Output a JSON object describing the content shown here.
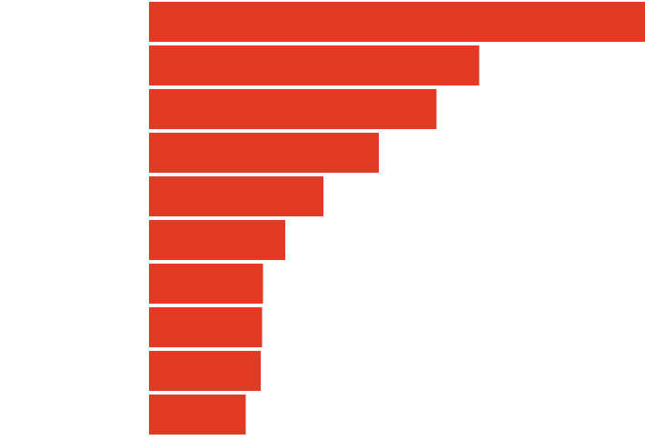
{
  "chart_data": {
    "type": "bar",
    "orientation": "horizontal",
    "title": "",
    "xlabel": "",
    "ylabel": "",
    "categories": [
      "",
      "",
      "",
      "",
      "",
      "",
      "",
      "",
      "",
      ""
    ],
    "values": [
      100,
      66.6,
      58.0,
      46.3,
      35.2,
      27.5,
      23.0,
      22.8,
      22.5,
      19.5
    ],
    "xlim": [
      0,
      100
    ],
    "grid": false,
    "legend": "none",
    "colors": {
      "bar": "#e23a24",
      "background": "#ffffff"
    }
  }
}
